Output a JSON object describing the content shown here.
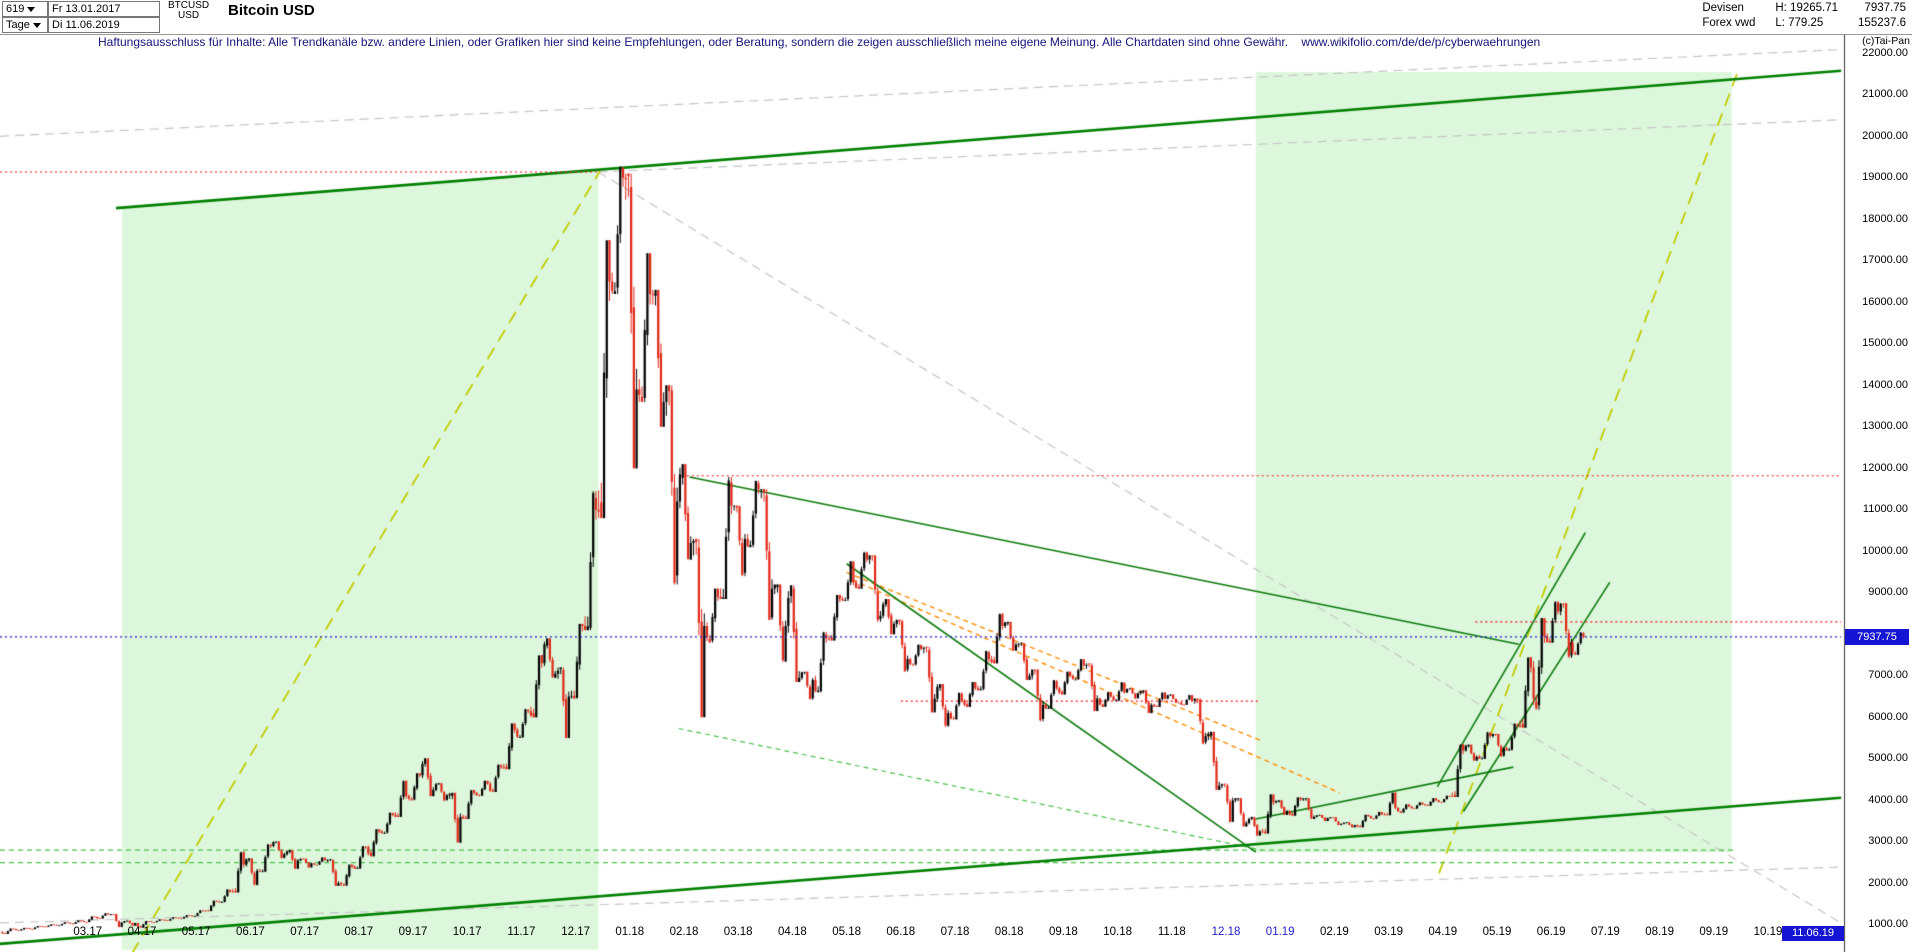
{
  "header": {
    "bars_count": "619",
    "start_date": "Fr 13.01.2017",
    "symbol": "BTCUSD",
    "symbol_currency": "USD",
    "instrument_title": "Bitcoin USD",
    "timeframe": "Tage",
    "end_date": "Di 11.06.2019",
    "market": "Devisen",
    "feed": "Forex vwd",
    "high_label": "H: 19265.71",
    "low_label": "L: 779.25",
    "last_price": "7937.75",
    "volume": "155237.6",
    "copyright": "(c)Tai-Pan"
  },
  "disclaimer": {
    "text": "Haftungsausschluss für Inhalte: Alle Trendkanäle bzw. andere Linien, oder Grafiken hier sind keine Empfehlungen, oder Beratung, sondern die zeigen ausschließlich meine eigene Meinung. Alle Chartdaten sind ohne Gewähr.",
    "url": "www.wikifolio.com/de/de/p/cyberwaehrungen"
  },
  "colors": {
    "candle_up": "#000000",
    "candle_down": "#e02818",
    "channel_fill": "rgba(144,228,144,0.30)",
    "trend_dark_green": "#008000",
    "trend_green": "#0c7a0c",
    "yellow_green": "#c0cc00",
    "light_green": "#4ec04e",
    "orange": "#ff8c00",
    "red": "#f01414",
    "blue": "#2020cc",
    "gray": "#c4c4c4",
    "tag_bg": "#1414d2",
    "tag_text": "#ffffff",
    "x_label_highlight": "#2222cc"
  },
  "chart_data": {
    "type": "candlestick",
    "title": "Bitcoin USD",
    "x_unit": "months since 2017-01-01 (0 = Jan 2017)",
    "x_range": [
      0.38,
      34.35
    ],
    "y_axis": {
      "min": 1000,
      "max": 22000,
      "step": 1000,
      "ticks": [
        1000,
        2000,
        3000,
        4000,
        5000,
        6000,
        7000,
        8000,
        9000,
        10000,
        11000,
        12000,
        13000,
        14000,
        15000,
        16000,
        17000,
        18000,
        19000,
        20000,
        21000,
        22000
      ]
    },
    "x_labels": [
      {
        "t": 2,
        "label": "03.17"
      },
      {
        "t": 3,
        "label": "04.17"
      },
      {
        "t": 4,
        "label": "05.17"
      },
      {
        "t": 5,
        "label": "06.17"
      },
      {
        "t": 6,
        "label": "07.17"
      },
      {
        "t": 7,
        "label": "08.17"
      },
      {
        "t": 8,
        "label": "09.17"
      },
      {
        "t": 9,
        "label": "10.17"
      },
      {
        "t": 10,
        "label": "11.17"
      },
      {
        "t": 11,
        "label": "12.17"
      },
      {
        "t": 12,
        "label": "01.18"
      },
      {
        "t": 13,
        "label": "02.18"
      },
      {
        "t": 14,
        "label": "03.18"
      },
      {
        "t": 15,
        "label": "04.18"
      },
      {
        "t": 16,
        "label": "05.18"
      },
      {
        "t": 17,
        "label": "06.18"
      },
      {
        "t": 18,
        "label": "07.18"
      },
      {
        "t": 19,
        "label": "08.18"
      },
      {
        "t": 20,
        "label": "09.18"
      },
      {
        "t": 21,
        "label": "10.18"
      },
      {
        "t": 22,
        "label": "11.18"
      },
      {
        "t": 23,
        "label": "12.18",
        "hl": true
      },
      {
        "t": 24,
        "label": "01.19",
        "hl": true
      },
      {
        "t": 25,
        "label": "02.19"
      },
      {
        "t": 26,
        "label": "03.19"
      },
      {
        "t": 27,
        "label": "04.19"
      },
      {
        "t": 28,
        "label": "05.19"
      },
      {
        "t": 29,
        "label": "06.19"
      },
      {
        "t": 30,
        "label": "07.19"
      },
      {
        "t": 31,
        "label": "08.19"
      },
      {
        "t": 32,
        "label": "09.19"
      },
      {
        "t": 33,
        "label": "10.19"
      }
    ],
    "current_price": 7937.75,
    "current_price_label": "7937.75",
    "last_date_label": "11.06.19",
    "weekly_ohlc": [
      [
        0.4,
        830,
        910,
        779.25,
        900
      ],
      [
        0.65,
        900,
        925,
        860,
        920
      ],
      [
        0.9,
        920,
        970,
        895,
        965
      ],
      [
        1.15,
        965,
        1010,
        950,
        1000
      ],
      [
        1.4,
        1000,
        1060,
        985,
        1050
      ],
      [
        1.65,
        1050,
        1105,
        1020,
        1090
      ],
      [
        1.9,
        1090,
        1200,
        1060,
        1190
      ],
      [
        2.15,
        1190,
        1280,
        1150,
        1250
      ],
      [
        2.4,
        1250,
        1260,
        940,
        1050
      ],
      [
        2.65,
        1050,
        1100,
        980,
        1040
      ],
      [
        2.9,
        1040,
        1090,
        930,
        1080
      ],
      [
        3.15,
        1080,
        1130,
        1060,
        1120
      ],
      [
        3.4,
        1120,
        1180,
        1100,
        1170
      ],
      [
        3.65,
        1170,
        1230,
        1150,
        1220
      ],
      [
        3.9,
        1220,
        1350,
        1210,
        1340
      ],
      [
        4.15,
        1340,
        1580,
        1330,
        1560
      ],
      [
        4.4,
        1560,
        1850,
        1540,
        1800
      ],
      [
        4.65,
        1800,
        2760,
        1780,
        2450
      ],
      [
        4.9,
        2450,
        2600,
        1950,
        2300
      ],
      [
        5.15,
        2300,
        2950,
        2280,
        2900
      ],
      [
        5.4,
        2900,
        3010,
        2600,
        2700
      ],
      [
        5.65,
        2700,
        2800,
        2350,
        2550
      ],
      [
        5.9,
        2550,
        2600,
        2380,
        2480
      ],
      [
        6.15,
        2480,
        2620,
        2440,
        2560
      ],
      [
        6.4,
        2560,
        2580,
        1940,
        2000
      ],
      [
        6.65,
        2000,
        2450,
        1940,
        2400
      ],
      [
        6.9,
        2400,
        2900,
        2350,
        2870
      ],
      [
        7.15,
        2870,
        3300,
        2650,
        3250
      ],
      [
        7.4,
        3250,
        3700,
        3200,
        3650
      ],
      [
        7.65,
        3650,
        4480,
        3600,
        4100
      ],
      [
        7.9,
        4100,
        4650,
        4000,
        4600
      ],
      [
        8.15,
        4600,
        5010,
        4100,
        4250
      ],
      [
        8.4,
        4250,
        4420,
        3990,
        4120
      ],
      [
        8.65,
        4120,
        4180,
        2980,
        3600
      ],
      [
        8.9,
        3600,
        4250,
        3550,
        4180
      ],
      [
        9.15,
        4180,
        4470,
        4100,
        4400
      ],
      [
        9.4,
        4400,
        4870,
        4200,
        4800
      ],
      [
        9.65,
        4800,
        5850,
        4750,
        5700
      ],
      [
        9.9,
        5700,
        6200,
        5500,
        6150
      ],
      [
        10.15,
        6150,
        7500,
        6000,
        7300
      ],
      [
        10.4,
        7300,
        7900,
        6950,
        7050
      ],
      [
        10.65,
        7050,
        7200,
        5500,
        6500
      ],
      [
        10.9,
        6500,
        8250,
        6450,
        8200
      ],
      [
        11.15,
        8200,
        11450,
        8100,
        11000
      ],
      [
        11.4,
        11000,
        17500,
        10800,
        16500
      ],
      [
        11.65,
        16500,
        19265.71,
        16200,
        19000
      ],
      [
        11.9,
        19000,
        19100,
        12000,
        13900
      ],
      [
        12.15,
        13900,
        17180,
        13600,
        16200
      ],
      [
        12.4,
        16200,
        16300,
        13000,
        13600
      ],
      [
        12.65,
        13600,
        14000,
        9200,
        11200
      ],
      [
        12.9,
        11200,
        12100,
        9800,
        10200
      ],
      [
        13.15,
        10200,
        10300,
        6000,
        8200
      ],
      [
        13.4,
        8200,
        9100,
        7800,
        8900
      ],
      [
        13.65,
        8900,
        11790,
        8850,
        11100
      ],
      [
        13.9,
        11100,
        11100,
        9400,
        10300
      ],
      [
        14.15,
        10300,
        11700,
        10100,
        11500
      ],
      [
        14.4,
        11500,
        11500,
        8350,
        9100
      ],
      [
        14.65,
        9100,
        9200,
        7330,
        8200
      ],
      [
        14.9,
        8200,
        9180,
        6850,
        6950
      ],
      [
        15.15,
        6950,
        7100,
        6425,
        6900
      ],
      [
        15.4,
        6900,
        8060,
        6600,
        7900
      ],
      [
        15.65,
        7900,
        8950,
        7850,
        8850
      ],
      [
        15.9,
        8850,
        9760,
        8800,
        9250
      ],
      [
        16.15,
        9250,
        9990,
        9100,
        9800
      ],
      [
        16.4,
        9800,
        9900,
        8300,
        8450
      ],
      [
        16.65,
        8450,
        8850,
        8000,
        8250
      ],
      [
        16.9,
        8250,
        8350,
        7100,
        7400
      ],
      [
        17.15,
        7400,
        7750,
        7250,
        7650
      ],
      [
        17.4,
        7650,
        7700,
        6120,
        6450
      ],
      [
        17.65,
        6450,
        6800,
        5770,
        6100
      ],
      [
        17.9,
        6100,
        6600,
        5950,
        6400
      ],
      [
        18.15,
        6400,
        6850,
        6250,
        6700
      ],
      [
        18.4,
        6700,
        7600,
        6650,
        7400
      ],
      [
        18.65,
        7400,
        8500,
        7300,
        8200
      ],
      [
        18.9,
        8200,
        8300,
        7600,
        7750
      ],
      [
        19.15,
        7750,
        7800,
        6900,
        7000
      ],
      [
        19.4,
        7000,
        7150,
        5900,
        6300
      ],
      [
        19.65,
        6300,
        6900,
        6200,
        6700
      ],
      [
        19.9,
        6700,
        7100,
        6550,
        7000
      ],
      [
        20.15,
        7000,
        7400,
        6900,
        7250
      ],
      [
        20.4,
        7250,
        7300,
        6150,
        6450
      ],
      [
        20.65,
        6450,
        6600,
        6250,
        6500
      ],
      [
        20.9,
        6500,
        6850,
        6400,
        6600
      ],
      [
        21.15,
        6600,
        6700,
        6450,
        6580
      ],
      [
        21.4,
        6580,
        6650,
        6100,
        6300
      ],
      [
        21.65,
        6300,
        6600,
        6250,
        6450
      ],
      [
        21.9,
        6450,
        6550,
        6350,
        6350
      ],
      [
        22.15,
        6350,
        6540,
        6300,
        6400
      ],
      [
        22.4,
        6400,
        6450,
        5350,
        5550
      ],
      [
        22.65,
        5550,
        5650,
        4250,
        4350
      ],
      [
        22.9,
        4350,
        4400,
        3475,
        4000
      ],
      [
        23.15,
        4000,
        4050,
        3360,
        3450
      ],
      [
        23.4,
        3450,
        3600,
        3150,
        3250
      ],
      [
        23.65,
        3250,
        4140,
        3200,
        3950
      ],
      [
        23.9,
        3950,
        4000,
        3650,
        3740
      ],
      [
        24.15,
        3740,
        4070,
        3630,
        4020
      ],
      [
        24.4,
        4020,
        4050,
        3550,
        3600
      ],
      [
        24.65,
        3600,
        3650,
        3500,
        3570
      ],
      [
        24.9,
        3570,
        3590,
        3400,
        3430
      ],
      [
        25.15,
        3430,
        3470,
        3350,
        3400
      ],
      [
        25.4,
        3400,
        3650,
        3350,
        3620
      ],
      [
        25.65,
        3620,
        3720,
        3550,
        3660
      ],
      [
        25.9,
        3660,
        4190,
        3640,
        3820
      ],
      [
        26.15,
        3820,
        3900,
        3700,
        3850
      ],
      [
        26.4,
        3850,
        3950,
        3800,
        3900
      ],
      [
        26.65,
        3900,
        4050,
        3870,
        4000
      ],
      [
        26.9,
        4000,
        4110,
        3950,
        4100
      ],
      [
        27.15,
        4100,
        5350,
        4080,
        5200
      ],
      [
        27.4,
        5200,
        5340,
        4950,
        5050
      ],
      [
        27.65,
        5050,
        5650,
        5000,
        5550
      ],
      [
        27.9,
        5550,
        5600,
        5050,
        5250
      ],
      [
        28.15,
        5250,
        5850,
        5200,
        5800
      ],
      [
        28.4,
        5800,
        7450,
        5750,
        7200
      ],
      [
        28.65,
        7200,
        8390,
        6180,
        7950
      ],
      [
        28.9,
        7950,
        8800,
        7800,
        8550
      ],
      [
        29.15,
        8550,
        8750,
        7430,
        7800
      ],
      [
        29.37,
        7800,
        8050,
        7500,
        7937.75
      ]
    ],
    "overlays": {
      "regions": [
        {
          "name": "rising-channel-2017",
          "points": [
            [
              2.63,
              18280
            ],
            [
              11.42,
              19200
            ],
            [
              11.42,
              400
            ],
            [
              2.63,
              400
            ]
          ]
        },
        {
          "name": "projection-channel-2019",
          "points": [
            [
              23.55,
              21550
            ],
            [
              32.33,
              21550
            ],
            [
              32.33,
              2750
            ],
            [
              23.55,
              2750
            ]
          ]
        }
      ],
      "lines": [
        {
          "name": "upper-channel-line",
          "style": "channel-major",
          "t1": 2.52,
          "p1": 18270,
          "t2": 34.35,
          "p2": 21580
        },
        {
          "name": "lower-support-line",
          "style": "channel-major",
          "t1": 0.38,
          "p1": 540,
          "t2": 34.35,
          "p2": 4060
        },
        {
          "name": "steep-rally-line-2017",
          "style": "yellow-dash",
          "t1": 2.81,
          "p1": 300,
          "t2": 11.45,
          "p2": 19160
        },
        {
          "name": "steep-rally-line-2019",
          "style": "yellow-dash",
          "t1": 26.93,
          "p1": 2240,
          "t2": 32.44,
          "p2": 21550
        },
        {
          "name": "descending-resistance-2018",
          "style": "trend-green",
          "t1": 13.1,
          "p1": 11790,
          "t2": 28.4,
          "p2": 7760
        },
        {
          "name": "descending-line-may18-dec18",
          "style": "trend-green",
          "t1": 16.0,
          "p1": 9700,
          "t2": 23.55,
          "p2": 2750
        },
        {
          "name": "orange-fan-1",
          "style": "orange-dash",
          "t1": 16.0,
          "p1": 9490,
          "t2": 23.66,
          "p2": 5430
        },
        {
          "name": "orange-fan-2",
          "style": "orange-dash",
          "t1": 16.1,
          "p1": 9310,
          "t2": 25.1,
          "p2": 4180
        },
        {
          "name": "resistance-19140",
          "style": "red-dot",
          "t1": 0.38,
          "p1": 19140,
          "t2": 11.42,
          "p2": 19140
        },
        {
          "name": "resistance-11820",
          "style": "red-dot",
          "t1": 13.05,
          "p1": 11820,
          "t2": 34.35,
          "p2": 11820
        },
        {
          "name": "resistance-8300",
          "style": "red-dot",
          "t1": 27.6,
          "p1": 8300,
          "t2": 34.35,
          "p2": 8300
        },
        {
          "name": "support-6390",
          "style": "red-dot",
          "t1": 17.0,
          "p1": 6390,
          "t2": 23.6,
          "p2": 6390
        },
        {
          "name": "support-2800",
          "style": "green-dash",
          "t1": 0.38,
          "p1": 2800,
          "t2": 32.4,
          "p2": 2800
        },
        {
          "name": "support-2500",
          "style": "green-dash",
          "t1": 0.38,
          "p1": 2500,
          "t2": 32.4,
          "p2": 2500
        },
        {
          "name": "descending-green-dash",
          "style": "green-dash",
          "t1": 12.9,
          "p1": 5730,
          "t2": 23.66,
          "p2": 2800
        },
        {
          "name": "rally-channel-2019-a",
          "style": "trend-green",
          "t1": 26.9,
          "p1": 4330,
          "t2": 29.63,
          "p2": 10450
        },
        {
          "name": "rally-channel-2019-b",
          "style": "trend-green",
          "t1": 27.38,
          "p1": 3730,
          "t2": 30.08,
          "p2": 9250
        },
        {
          "name": "base-line-2019",
          "style": "trend-green",
          "t1": 23.55,
          "p1": 3550,
          "t2": 28.3,
          "p2": 4800
        },
        {
          "name": "gray-diag-down",
          "style": "gray-dash",
          "t1": 11.42,
          "p1": 19140,
          "t2": 34.35,
          "p2": 1040
        },
        {
          "name": "gray-top",
          "style": "gray-dash",
          "t1": 0.38,
          "p1": 20000,
          "t2": 34.35,
          "p2": 22090
        },
        {
          "name": "gray-top-2",
          "style": "gray-dash",
          "t1": 11.42,
          "p1": 19140,
          "t2": 34.35,
          "p2": 20400
        },
        {
          "name": "gray-bottom",
          "style": "gray-dash",
          "t1": 0.38,
          "p1": 1045,
          "t2": 34.35,
          "p2": 2390
        },
        {
          "name": "current-price-line",
          "style": "blue-dot",
          "t1": 0.38,
          "p1": 7937.75,
          "t2": 34.35,
          "p2": 7937.75
        }
      ]
    }
  }
}
